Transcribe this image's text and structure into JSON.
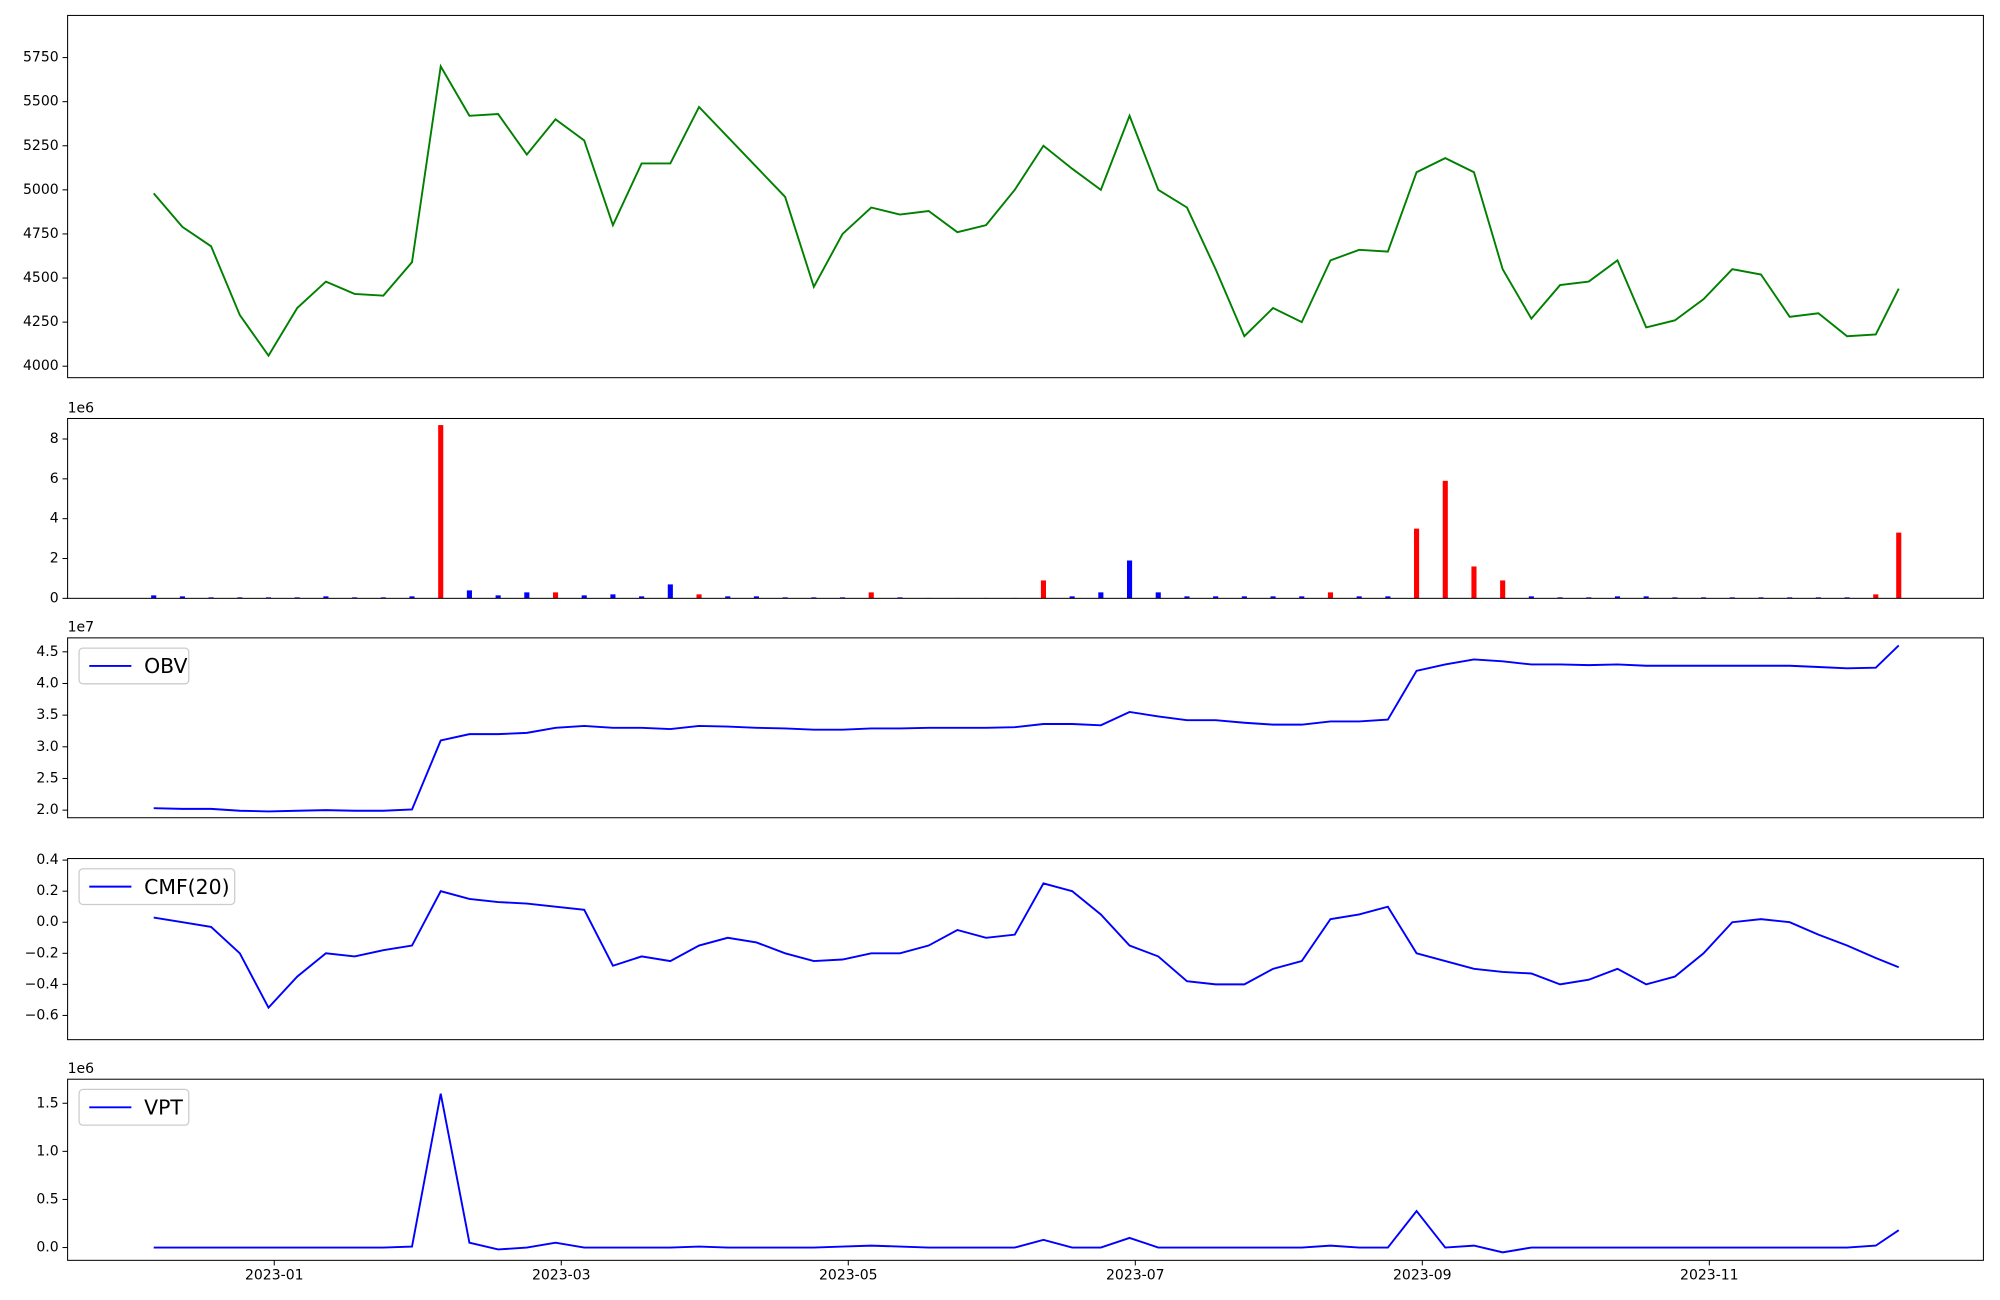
{
  "chart_data": [
    {
      "type": "line",
      "color": "green",
      "x": [
        -0.84,
        -0.64,
        -0.44,
        -0.24,
        -0.04,
        0.16,
        0.36,
        0.56,
        0.76,
        0.96,
        1.16,
        1.36,
        1.56,
        1.76,
        1.96,
        2.16,
        2.36,
        2.56,
        2.76,
        2.96,
        3.16,
        3.36,
        3.56,
        3.76,
        3.96,
        4.16,
        4.36,
        4.56,
        4.76,
        4.96,
        5.16,
        5.36,
        5.56,
        5.76,
        5.96,
        6.16,
        6.36,
        6.56,
        6.76,
        6.96,
        7.16,
        7.36,
        7.56,
        7.76,
        7.96,
        8.16,
        8.36,
        8.56,
        8.76,
        8.96,
        9.16,
        9.36,
        9.56,
        9.76,
        9.96,
        10.16,
        10.36,
        10.56,
        10.76,
        10.96,
        11.16,
        11.32
      ],
      "values": [
        4980,
        4790,
        4680,
        4290,
        4060,
        4330,
        4480,
        4410,
        4400,
        4590,
        5700,
        5420,
        5430,
        5200,
        5400,
        5280,
        4800,
        5150,
        5150,
        5470,
        5300,
        5130,
        4960,
        4450,
        4750,
        4900,
        4860,
        4880,
        4760,
        4800,
        5000,
        5250,
        5120,
        5000,
        5420,
        5000,
        4900,
        4550,
        4170,
        4330,
        4250,
        4600,
        4660,
        4650,
        5100,
        5180,
        5100,
        4550,
        4270,
        4460,
        4480,
        4600,
        4220,
        4260,
        4380,
        4550,
        4520,
        4280,
        4300,
        4170,
        4180,
        4440
      ],
      "xlim": [
        -1.44,
        11.91
      ],
      "ylim": [
        3935,
        5989
      ],
      "yticks": [
        4000,
        4250,
        4500,
        4750,
        5000,
        5250,
        5500,
        5750
      ]
    },
    {
      "type": "bar",
      "offset_label": "1e6",
      "x": [
        -0.84,
        -0.64,
        -0.44,
        -0.24,
        -0.04,
        0.16,
        0.36,
        0.56,
        0.76,
        0.96,
        1.16,
        1.36,
        1.56,
        1.76,
        1.96,
        2.16,
        2.36,
        2.56,
        2.76,
        2.96,
        3.16,
        3.36,
        3.56,
        3.76,
        3.96,
        4.16,
        4.36,
        4.56,
        4.76,
        4.96,
        5.16,
        5.36,
        5.56,
        5.76,
        5.96,
        6.16,
        6.36,
        6.56,
        6.76,
        6.96,
        7.16,
        7.36,
        7.56,
        7.76,
        7.96,
        8.16,
        8.36,
        8.56,
        8.76,
        8.96,
        9.16,
        9.36,
        9.56,
        9.76,
        9.96,
        10.16,
        10.36,
        10.56,
        10.76,
        10.96,
        11.16,
        11.32
      ],
      "values": [
        0.15,
        0.1,
        0.05,
        0.05,
        0.05,
        0.05,
        0.1,
        0.05,
        0.05,
        0.1,
        8.7,
        0.4,
        0.15,
        0.3,
        0.3,
        0.15,
        0.2,
        0.1,
        0.7,
        0.2,
        0.1,
        0.1,
        0.05,
        0.05,
        0.05,
        0.3,
        0.05,
        0.02,
        0.02,
        0.02,
        0.02,
        0.9,
        0.1,
        0.3,
        1.9,
        0.3,
        0.1,
        0.1,
        0.1,
        0.1,
        0.1,
        0.3,
        0.1,
        0.1,
        3.5,
        5.9,
        1.6,
        0.9,
        0.1,
        0.05,
        0.05,
        0.1,
        0.1,
        0.05,
        0.05,
        0.05,
        0.05,
        0.05,
        0.05,
        0.05,
        0.2,
        3.3
      ],
      "colors": [
        "blue",
        "blue",
        "blue",
        "blue",
        "blue",
        "blue",
        "blue",
        "blue",
        "blue",
        "blue",
        "red",
        "blue",
        "blue",
        "blue",
        "red",
        "blue",
        "blue",
        "blue",
        "blue",
        "red",
        "blue",
        "blue",
        "blue",
        "blue",
        "blue",
        "red",
        "blue",
        "blue",
        "blue",
        "blue",
        "blue",
        "red",
        "blue",
        "blue",
        "blue",
        "blue",
        "blue",
        "blue",
        "blue",
        "blue",
        "blue",
        "red",
        "blue",
        "blue",
        "red",
        "red",
        "red",
        "red",
        "blue",
        "blue",
        "blue",
        "blue",
        "blue",
        "blue",
        "blue",
        "blue",
        "blue",
        "blue",
        "blue",
        "blue",
        "red",
        "red"
      ],
      "xlim": [
        -1.44,
        11.91
      ],
      "ylim": [
        0,
        9.03
      ],
      "yticks": [
        0,
        2,
        4,
        6,
        8
      ]
    },
    {
      "type": "line",
      "offset_label": "1e7",
      "legend": "upper left",
      "x": [
        -0.84,
        -0.64,
        -0.44,
        -0.24,
        -0.04,
        0.16,
        0.36,
        0.56,
        0.76,
        0.96,
        1.16,
        1.36,
        1.56,
        1.76,
        1.96,
        2.16,
        2.36,
        2.56,
        2.76,
        2.96,
        3.16,
        3.36,
        3.56,
        3.76,
        3.96,
        4.16,
        4.36,
        4.56,
        4.76,
        4.96,
        5.16,
        5.36,
        5.56,
        5.76,
        5.96,
        6.16,
        6.36,
        6.56,
        6.76,
        6.96,
        7.16,
        7.36,
        7.56,
        7.76,
        7.96,
        8.16,
        8.36,
        8.56,
        8.76,
        8.96,
        9.16,
        9.36,
        9.56,
        9.76,
        9.96,
        10.16,
        10.36,
        10.56,
        10.76,
        10.96,
        11.16,
        11.32
      ],
      "series": [
        {
          "name": "OBV",
          "color": "blue",
          "values": [
            2.03,
            2.02,
            2.02,
            1.99,
            1.98,
            1.99,
            2.0,
            1.99,
            1.99,
            2.01,
            3.1,
            3.2,
            3.2,
            3.22,
            3.3,
            3.33,
            3.3,
            3.3,
            3.28,
            3.33,
            3.32,
            3.3,
            3.29,
            3.27,
            3.27,
            3.29,
            3.29,
            3.3,
            3.3,
            3.3,
            3.31,
            3.36,
            3.36,
            3.34,
            3.55,
            3.48,
            3.42,
            3.42,
            3.38,
            3.35,
            3.35,
            3.4,
            3.4,
            3.43,
            4.2,
            4.3,
            4.38,
            4.35,
            4.3,
            4.3,
            4.29,
            4.3,
            4.28,
            4.28,
            4.28,
            4.28,
            4.28,
            4.28,
            4.26,
            4.24,
            4.25,
            4.6
          ]
        }
      ],
      "xlim": [
        -1.44,
        11.91
      ],
      "ylim": [
        1.88,
        4.72
      ],
      "yticks": [
        {
          "value": 2,
          "label": "2.0"
        },
        2.5,
        {
          "value": 3,
          "label": "3.0"
        },
        3.5,
        {
          "value": 4,
          "label": "4.0"
        },
        4.5
      ]
    },
    {
      "type": "line",
      "legend": "upper left",
      "x": [
        -0.84,
        -0.64,
        -0.44,
        -0.24,
        -0.04,
        0.16,
        0.36,
        0.56,
        0.76,
        0.96,
        1.16,
        1.36,
        1.56,
        1.76,
        1.96,
        2.16,
        2.36,
        2.56,
        2.76,
        2.96,
        3.16,
        3.36,
        3.56,
        3.76,
        3.96,
        4.16,
        4.36,
        4.56,
        4.76,
        4.96,
        5.16,
        5.36,
        5.56,
        5.76,
        5.96,
        6.16,
        6.36,
        6.56,
        6.76,
        6.96,
        7.16,
        7.36,
        7.56,
        7.76,
        7.96,
        8.16,
        8.36,
        8.56,
        8.76,
        8.96,
        9.16,
        9.36,
        9.56,
        9.76,
        9.96,
        10.16,
        10.36,
        10.56,
        10.76,
        10.96,
        11.16,
        11.32
      ],
      "series": [
        {
          "name": "CMF(20)",
          "color": "blue",
          "values": [
            0.03,
            0.0,
            -0.03,
            -0.2,
            -0.55,
            -0.35,
            -0.2,
            -0.22,
            -0.18,
            -0.15,
            0.2,
            0.15,
            0.13,
            0.12,
            0.1,
            0.08,
            -0.28,
            -0.22,
            -0.25,
            -0.15,
            -0.1,
            -0.13,
            -0.2,
            -0.25,
            -0.24,
            -0.2,
            -0.2,
            -0.15,
            -0.05,
            -0.1,
            -0.08,
            0.25,
            0.2,
            0.05,
            -0.15,
            -0.22,
            -0.38,
            -0.4,
            -0.4,
            -0.3,
            -0.25,
            0.02,
            0.05,
            0.1,
            -0.2,
            -0.25,
            -0.3,
            -0.32,
            -0.33,
            -0.4,
            -0.37,
            -0.3,
            -0.4,
            -0.35,
            -0.2,
            0.0,
            0.02,
            0.0,
            -0.08,
            -0.15,
            -0.23,
            -0.29
          ]
        }
      ],
      "xlim": [
        -1.44,
        11.91
      ],
      "ylim": [
        -0.756,
        0.41
      ],
      "yticks": [
        {
          "value": -0.6,
          "label": "−0.6"
        },
        {
          "value": -0.4,
          "label": "−0.4"
        },
        {
          "value": -0.2,
          "label": "−0.2"
        },
        {
          "value": 0,
          "label": "0.0"
        },
        0.2,
        0.4
      ]
    },
    {
      "type": "line",
      "offset_label": "1e6",
      "legend": "upper left",
      "x": [
        -0.84,
        -0.64,
        -0.44,
        -0.24,
        -0.04,
        0.16,
        0.36,
        0.56,
        0.76,
        0.96,
        1.16,
        1.36,
        1.56,
        1.76,
        1.96,
        2.16,
        2.36,
        2.56,
        2.76,
        2.96,
        3.16,
        3.36,
        3.56,
        3.76,
        3.96,
        4.16,
        4.36,
        4.56,
        4.76,
        4.96,
        5.16,
        5.36,
        5.56,
        5.76,
        5.96,
        6.16,
        6.36,
        6.56,
        6.76,
        6.96,
        7.16,
        7.36,
        7.56,
        7.76,
        7.96,
        8.16,
        8.36,
        8.56,
        8.76,
        8.96,
        9.16,
        9.36,
        9.56,
        9.76,
        9.96,
        10.16,
        10.36,
        10.56,
        10.76,
        10.96,
        11.16,
        11.32
      ],
      "series": [
        {
          "name": "VPT",
          "color": "blue",
          "values": [
            0,
            0,
            0,
            0,
            0,
            0,
            0,
            0,
            0,
            0.01,
            1.6,
            0.05,
            -0.02,
            0,
            0.05,
            0,
            0,
            0,
            0,
            0.01,
            0,
            0,
            0,
            0,
            0.01,
            0.02,
            0.01,
            0,
            0,
            0,
            0,
            0.08,
            0,
            0,
            0.1,
            0,
            0,
            0,
            0,
            0,
            0,
            0.02,
            0,
            0,
            0.38,
            0,
            0.02,
            -0.05,
            0,
            0,
            0,
            0,
            0,
            0,
            0,
            0,
            0,
            0,
            0,
            0,
            0.02,
            0.18
          ]
        }
      ],
      "xlim": [
        -1.44,
        11.91
      ],
      "ylim": [
        -0.133,
        1.75
      ],
      "yticks": [
        {
          "value": 0,
          "label": "0.0"
        },
        0.5,
        {
          "value": 1,
          "label": "1.0"
        },
        1.5
      ],
      "xticks": [
        {
          "value": 0,
          "label": "2023-01"
        },
        {
          "value": 2,
          "label": "2023-03"
        },
        {
          "value": 4,
          "label": "2023-05"
        },
        {
          "value": 6,
          "label": "2023-07"
        },
        {
          "value": 8,
          "label": "2023-09"
        },
        {
          "value": 10,
          "label": "2023-11"
        }
      ]
    }
  ]
}
